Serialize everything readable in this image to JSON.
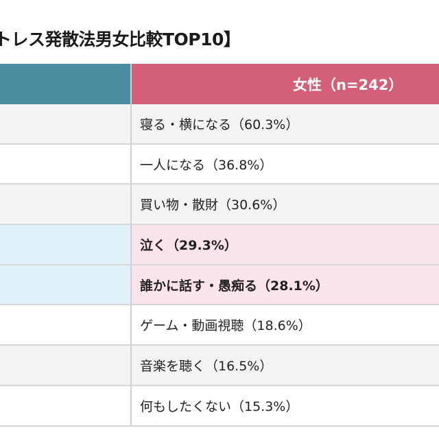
{
  "title": "トレス発散法男女比較TOP10】",
  "columns": {
    "male": {
      "label": "",
      "color": "#4a8fa1"
    },
    "female": {
      "label": "女性（n=242）",
      "color": "#d35f78"
    }
  },
  "rows": [
    {
      "female": "寝る・横になる（60.3%）",
      "highlight": false
    },
    {
      "female": "一人になる（36.8%）",
      "highlight": false
    },
    {
      "female": "買い物・散財（30.6%）",
      "highlight": false
    },
    {
      "female": "泣く（29.3%）",
      "highlight": true
    },
    {
      "female": "誰かに話す・愚痴る（28.1%）",
      "highlight": true
    },
    {
      "female": "ゲーム・動画視聴（18.6%）",
      "highlight": false
    },
    {
      "female": "音楽を聴く（16.5%）",
      "highlight": false
    },
    {
      "female": "何もしたくない（15.3%）",
      "highlight": false
    }
  ]
}
